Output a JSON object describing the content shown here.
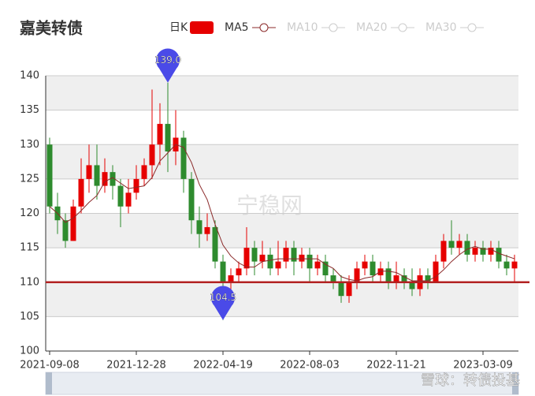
{
  "chart_data": {
    "type": "candlestick",
    "title": "嘉美转债",
    "watermark": "宁稳网",
    "footer_watermark": "雪球：转债投基",
    "candle_name": "日K",
    "up_color": "#e60000",
    "down_color": "#2e8b2e",
    "categories": [
      "2021-09-08",
      null,
      null,
      null,
      null,
      null,
      null,
      null,
      null,
      null,
      null,
      "2021-12-28",
      null,
      null,
      null,
      null,
      null,
      null,
      null,
      null,
      null,
      null,
      "2022-04-19",
      null,
      null,
      null,
      null,
      null,
      null,
      null,
      null,
      null,
      null,
      "2022-08-03",
      null,
      null,
      null,
      null,
      null,
      null,
      null,
      null,
      null,
      null,
      "2022-11-21",
      null,
      null,
      null,
      null,
      null,
      null,
      null,
      null,
      null,
      null,
      "2023-03-09",
      null,
      null,
      null,
      null
    ],
    "open": [
      130,
      121,
      119,
      116,
      121,
      125,
      127,
      124,
      126,
      124,
      121,
      123,
      125,
      127,
      130,
      133,
      129,
      131,
      125,
      119,
      117,
      118,
      113,
      110,
      111,
      112,
      115,
      113,
      114,
      112,
      113,
      115,
      113,
      114,
      112,
      113,
      111,
      110,
      108,
      110,
      112,
      113,
      111,
      112,
      110,
      111,
      110,
      109,
      111,
      110,
      113,
      116,
      115,
      116,
      114,
      115,
      114,
      115,
      113,
      112
    ],
    "close": [
      121,
      119,
      116,
      121,
      125,
      127,
      124,
      126,
      124,
      121,
      123,
      125,
      127,
      130,
      133,
      129,
      131,
      125,
      119,
      117,
      118,
      113,
      110,
      111,
      112,
      115,
      113,
      114,
      112,
      113,
      115,
      113,
      114,
      112,
      113,
      111,
      110,
      108,
      110,
      112,
      113,
      111,
      112,
      110,
      111,
      110,
      109,
      111,
      110,
      113,
      116,
      115,
      116,
      114,
      115,
      114,
      115,
      113,
      112,
      113
    ],
    "low": [
      120,
      117,
      115,
      116,
      120,
      123,
      122,
      123,
      122,
      118,
      120,
      122,
      124,
      125,
      127,
      126,
      127,
      123,
      117,
      115,
      116,
      112,
      104.5,
      109,
      110,
      111,
      111,
      112,
      111,
      111,
      112,
      111,
      112,
      110,
      111,
      110,
      109,
      107,
      107,
      109,
      111,
      110,
      110,
      109,
      109,
      109,
      108,
      108,
      109,
      110,
      112,
      114,
      114,
      113,
      113,
      113,
      113,
      112,
      111,
      110
    ],
    "high": [
      131,
      123,
      120,
      122,
      128,
      130,
      130,
      128,
      127,
      125,
      125,
      127,
      128,
      138,
      136,
      139,
      135,
      132,
      126,
      121,
      120,
      119,
      114,
      112,
      113,
      118,
      116,
      116,
      115,
      116,
      116,
      116,
      115,
      115,
      114,
      114,
      112,
      111,
      111,
      113,
      114,
      114,
      113,
      113,
      113,
      112,
      112,
      112,
      112,
      114,
      117,
      119,
      117,
      117,
      116,
      116,
      116,
      116,
      114,
      114
    ],
    "series": [
      {
        "name": "MA5",
        "color": "#8b2a2a",
        "values": [
          121,
          120,
          118.7,
          119.3,
          120.4,
          121.6,
          122.6,
          124.6,
          125.2,
          124.4,
          123.6,
          123.8,
          124,
          125.2,
          127.6,
          128.8,
          130,
          129.6,
          127.4,
          124.2,
          122,
          118.4,
          115.4,
          113.8,
          112.8,
          112.2,
          112.2,
          113,
          113.2,
          113.4,
          113.4,
          113.4,
          113.4,
          113.4,
          113.4,
          112.6,
          112,
          110.8,
          110.4,
          110.2,
          110.6,
          110.8,
          111.6,
          111.6,
          111.4,
          110.8,
          110.2,
          110.2,
          110.2,
          110.8,
          111.8,
          113,
          114,
          114.8,
          115.2,
          114.8,
          114.8,
          114.2,
          113.8,
          113.4
        ]
      },
      {
        "name": "MA10",
        "color": "#cccccc"
      },
      {
        "name": "MA20",
        "color": "#cccccc"
      },
      {
        "name": "MA30",
        "color": "#cccccc"
      }
    ],
    "mark_points": [
      {
        "value": 139,
        "label": "139.0"
      },
      {
        "value": 104.5,
        "label": "104.5"
      }
    ],
    "mark_line": 110,
    "mark_line_color": "#b22222",
    "ylim": [
      100,
      140
    ],
    "yticks": [
      100,
      105,
      110,
      115,
      120,
      125,
      130,
      135,
      140
    ],
    "grid": true
  }
}
